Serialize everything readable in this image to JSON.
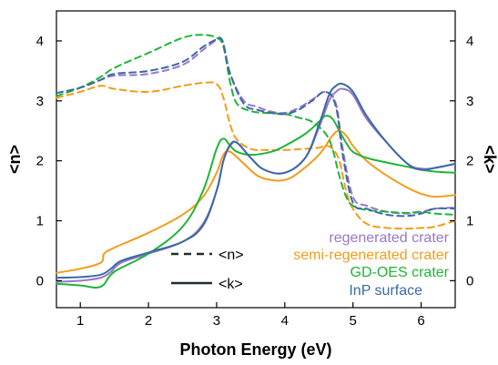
{
  "chart_data": {
    "type": "line",
    "title": "",
    "xlabel": "Photon Energy (eV)",
    "ylabel_left": "<n>",
    "ylabel_right": "<k>",
    "xlim": [
      0.65,
      6.5
    ],
    "ylim": [
      -0.45,
      4.5
    ],
    "x_ticks": [
      "1",
      "2",
      "3",
      "4",
      "5",
      "6"
    ],
    "y_ticks": [
      "0",
      "1",
      "2",
      "3",
      "4"
    ],
    "grid": false,
    "style_legend": [
      {
        "label": "<n>",
        "dash": "dashed"
      },
      {
        "label": "<k>",
        "dash": "solid"
      }
    ],
    "sample_legend_position": "bottom-right",
    "series": [
      {
        "name": "regenerated crater",
        "color": "#9a76c8",
        "n": {
          "x": [
            0.65,
            1.0,
            1.3,
            1.5,
            2.0,
            2.5,
            2.8,
            3.0,
            3.05,
            3.1,
            3.2,
            3.4,
            3.6,
            3.8,
            4.0,
            4.2,
            4.4,
            4.6,
            4.75,
            4.85,
            5.0,
            5.2,
            5.5,
            5.8,
            6.0,
            6.2,
            6.5
          ],
          "y": [
            3.13,
            3.22,
            3.35,
            3.42,
            3.45,
            3.6,
            3.85,
            4.02,
            4.05,
            3.95,
            3.45,
            3.0,
            2.9,
            2.82,
            2.8,
            2.88,
            3.02,
            3.15,
            2.95,
            2.2,
            1.4,
            1.25,
            1.15,
            1.12,
            1.15,
            1.2,
            1.22
          ]
        },
        "k": {
          "x": [
            0.65,
            1.0,
            1.3,
            1.45,
            1.6,
            2.0,
            2.5,
            2.8,
            3.0,
            3.1,
            3.2,
            3.3,
            3.5,
            3.7,
            4.0,
            4.3,
            4.5,
            4.65,
            4.75,
            4.85,
            5.0,
            5.2,
            5.5,
            5.8,
            6.0,
            6.2,
            6.5
          ],
          "y": [
            -0.02,
            0.0,
            0.05,
            0.15,
            0.3,
            0.45,
            0.65,
            0.95,
            1.5,
            2.0,
            2.25,
            2.3,
            2.05,
            1.85,
            1.8,
            2.05,
            2.55,
            3.0,
            3.15,
            3.2,
            3.1,
            2.7,
            2.3,
            1.95,
            1.87,
            1.88,
            1.95
          ]
        }
      },
      {
        "name": "semi-regenerated crater",
        "color": "#f39c1b",
        "n": {
          "x": [
            0.65,
            1.0,
            1.3,
            1.5,
            2.0,
            2.5,
            2.8,
            3.0,
            3.1,
            3.2,
            3.3,
            3.5,
            3.7,
            4.0,
            4.3,
            4.5,
            4.6,
            4.7,
            4.8,
            4.9,
            5.0,
            5.2,
            5.5,
            5.8,
            6.0,
            6.2,
            6.5
          ],
          "y": [
            3.05,
            3.15,
            3.25,
            3.2,
            3.15,
            3.25,
            3.3,
            3.28,
            3.05,
            2.6,
            2.35,
            2.2,
            2.18,
            2.18,
            2.2,
            2.22,
            2.25,
            2.2,
            2.0,
            1.5,
            1.2,
            0.95,
            0.88,
            0.87,
            0.88,
            0.9,
            1.0
          ]
        },
        "k": {
          "x": [
            0.65,
            1.0,
            1.3,
            1.35,
            1.5,
            2.0,
            2.5,
            2.8,
            3.0,
            3.1,
            3.2,
            3.4,
            3.6,
            3.8,
            4.0,
            4.2,
            4.5,
            4.7,
            4.8,
            4.9,
            5.0,
            5.2,
            5.5,
            5.8,
            6.0,
            6.2,
            6.5
          ],
          "y": [
            0.13,
            0.2,
            0.3,
            0.45,
            0.55,
            0.8,
            1.1,
            1.4,
            1.8,
            2.1,
            2.15,
            1.95,
            1.75,
            1.68,
            1.68,
            1.8,
            2.1,
            2.42,
            2.5,
            2.42,
            2.25,
            2.0,
            1.75,
            1.55,
            1.45,
            1.4,
            1.43
          ]
        }
      },
      {
        "name": "GD-OES crater",
        "color": "#1fb537",
        "n": {
          "x": [
            0.65,
            1.0,
            1.3,
            1.5,
            2.0,
            2.5,
            2.8,
            3.0,
            3.1,
            3.2,
            3.3,
            3.5,
            3.7,
            4.0,
            4.2,
            4.4,
            4.6,
            4.7,
            4.8,
            4.9,
            5.0,
            5.2,
            5.5,
            5.8,
            6.0,
            6.2,
            6.5
          ],
          "y": [
            3.08,
            3.22,
            3.4,
            3.55,
            3.8,
            4.05,
            4.1,
            4.05,
            3.9,
            3.3,
            2.95,
            2.83,
            2.8,
            2.78,
            2.72,
            2.65,
            2.45,
            2.2,
            1.75,
            1.4,
            1.25,
            1.18,
            1.15,
            1.13,
            1.15,
            1.12,
            1.1
          ]
        },
        "k": {
          "x": [
            0.65,
            1.0,
            1.3,
            1.5,
            2.0,
            2.5,
            2.8,
            3.0,
            3.1,
            3.2,
            3.3,
            3.5,
            3.8,
            4.0,
            4.3,
            4.5,
            4.6,
            4.7,
            4.8,
            4.9,
            5.0,
            5.2,
            5.5,
            5.8,
            6.0,
            6.2,
            6.5
          ],
          "y": [
            -0.05,
            -0.08,
            -0.1,
            0.15,
            0.45,
            0.9,
            1.5,
            2.2,
            2.37,
            2.25,
            2.15,
            2.1,
            2.15,
            2.25,
            2.45,
            2.65,
            2.75,
            2.7,
            2.5,
            2.3,
            2.15,
            2.05,
            1.97,
            1.9,
            1.85,
            1.82,
            1.8
          ]
        }
      },
      {
        "name": "InP surface",
        "color": "#3b69a6",
        "n": {
          "x": [
            0.65,
            1.0,
            1.3,
            1.5,
            2.0,
            2.5,
            2.8,
            3.0,
            3.05,
            3.1,
            3.2,
            3.4,
            3.6,
            3.8,
            4.0,
            4.2,
            4.4,
            4.6,
            4.75,
            4.85,
            5.0,
            5.2,
            5.5,
            5.8,
            6.0,
            6.2,
            6.5
          ],
          "y": [
            3.13,
            3.22,
            3.35,
            3.45,
            3.5,
            3.65,
            3.9,
            4.03,
            4.05,
            3.95,
            3.45,
            2.95,
            2.85,
            2.8,
            2.78,
            2.85,
            3.0,
            3.15,
            2.9,
            2.1,
            1.3,
            1.2,
            1.1,
            1.08,
            1.12,
            1.2,
            1.2
          ]
        },
        "k": {
          "x": [
            0.65,
            1.0,
            1.3,
            1.45,
            1.6,
            2.0,
            2.5,
            2.8,
            3.0,
            3.1,
            3.2,
            3.3,
            3.5,
            3.7,
            4.0,
            4.3,
            4.5,
            4.65,
            4.75,
            4.85,
            5.0,
            5.2,
            5.5,
            5.8,
            6.0,
            6.2,
            6.5
          ],
          "y": [
            0.05,
            0.06,
            0.1,
            0.2,
            0.33,
            0.47,
            0.65,
            0.92,
            1.5,
            2.0,
            2.27,
            2.3,
            2.05,
            1.85,
            1.8,
            2.05,
            2.6,
            3.1,
            3.25,
            3.28,
            3.15,
            2.75,
            2.3,
            1.95,
            1.85,
            1.88,
            1.95
          ]
        }
      }
    ]
  }
}
